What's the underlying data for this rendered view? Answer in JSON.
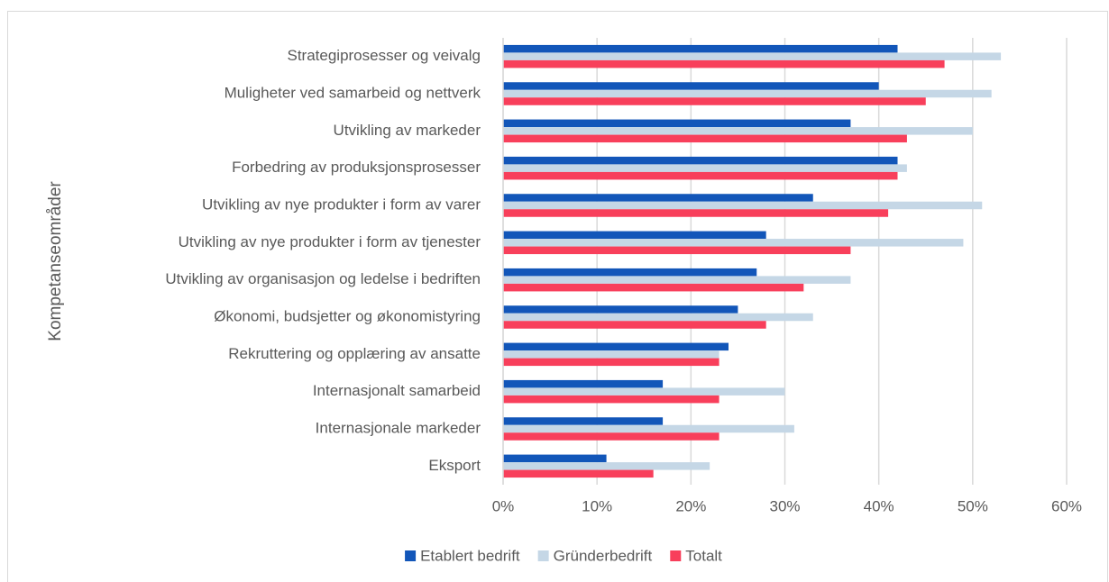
{
  "chart_data": {
    "type": "hbar",
    "y_axis_label": "Kompetanseområder",
    "categories": [
      "Strategiprosesser og veivalg",
      "Muligheter ved samarbeid og nettverk",
      "Utvikling av markeder",
      "Forbedring av produksjonsprosesser",
      "Utvikling av nye produkter i form av varer",
      "Utvikling av nye produkter i form av tjenester",
      "Utvikling av organisasjon og ledelse i bedriften",
      "Økonomi, budsjetter og økonomistyring",
      "Rekruttering og opplæring av ansatte",
      "Internasjonalt samarbeid",
      "Internasjonale markeder",
      "Eksport"
    ],
    "series": [
      {
        "name": "Etablert bedrift",
        "color": "#1256b9",
        "values": [
          42,
          40,
          37,
          42,
          33,
          28,
          27,
          25,
          24,
          17,
          17,
          11
        ]
      },
      {
        "name": "Gründerbedrift",
        "color": "#c5d7e6",
        "values": [
          53,
          52,
          50,
          43,
          51,
          49,
          37,
          33,
          23,
          30,
          31,
          22
        ]
      },
      {
        "name": "Totalt",
        "color": "#f83f5b",
        "values": [
          47,
          45,
          43,
          42,
          41,
          37,
          32,
          28,
          23,
          23,
          23,
          16
        ]
      }
    ],
    "xlim": [
      0,
      60
    ],
    "xticks": [
      {
        "value": 0,
        "label": "0%"
      },
      {
        "value": 10,
        "label": "10%"
      },
      {
        "value": 20,
        "label": "20%"
      },
      {
        "value": 30,
        "label": "30%"
      },
      {
        "value": 40,
        "label": "40%"
      },
      {
        "value": 50,
        "label": "50%"
      },
      {
        "value": 60,
        "label": "60%"
      }
    ],
    "grid": true,
    "legend": "bottom"
  }
}
